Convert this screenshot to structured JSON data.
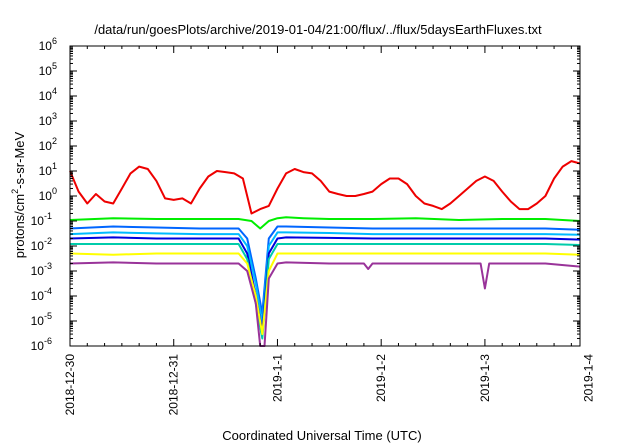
{
  "chart_data": {
    "type": "line",
    "title": "/data/run/goesPlots/archive/2019-01-04/21:00/flux/../flux/5daysEarthFluxes.txt",
    "xlabel": "Coordinated Universal Time (UTC)",
    "ylabel_parts": [
      "protons/cm",
      "2",
      "-s-sr-MeV"
    ],
    "y_scale": "log",
    "ylim": [
      1e-06,
      1000000.0
    ],
    "y_ticks": [
      {
        "mant": "10",
        "exp": "-6"
      },
      {
        "mant": "10",
        "exp": "-5"
      },
      {
        "mant": "10",
        "exp": "-4"
      },
      {
        "mant": "10",
        "exp": "-3"
      },
      {
        "mant": "10",
        "exp": "-2"
      },
      {
        "mant": "10",
        "exp": "-1"
      },
      {
        "mant": "10",
        "exp": "0"
      },
      {
        "mant": "10",
        "exp": "1"
      },
      {
        "mant": "10",
        "exp": "2"
      },
      {
        "mant": "10",
        "exp": "3"
      },
      {
        "mant": "10",
        "exp": "4"
      },
      {
        "mant": "10",
        "exp": "5"
      },
      {
        "mant": "10",
        "exp": "6"
      }
    ],
    "x_ticks": [
      "2018-12-30",
      "2018-12-31",
      "2019-1-1",
      "2019-1-2",
      "2019-1-3",
      "2019-1-4"
    ],
    "xlim_hours": [
      0,
      118
    ],
    "grid": false,
    "legend": "none",
    "series": [
      {
        "color": "#ee0000",
        "x": [
          0,
          2,
          4,
          6,
          8,
          10,
          12,
          14,
          16,
          18,
          20,
          22,
          24,
          26,
          28,
          30,
          32,
          34,
          36,
          38,
          40,
          42,
          44,
          46,
          48,
          50,
          52,
          54,
          56,
          58,
          60,
          62,
          64,
          66,
          68,
          70,
          72,
          74,
          76,
          78,
          80,
          82,
          84,
          86,
          88,
          90,
          92,
          94,
          96,
          98,
          100,
          102,
          104,
          106,
          108,
          110,
          112,
          114,
          116,
          118
        ],
        "y": [
          10,
          1.5,
          0.5,
          1.2,
          0.6,
          0.5,
          2,
          8,
          15,
          12,
          4,
          0.8,
          0.7,
          0.8,
          0.5,
          2,
          6,
          10,
          9,
          8,
          5,
          0.2,
          0.3,
          0.4,
          2,
          8,
          12,
          9,
          8,
          4,
          1.5,
          1.2,
          1,
          1,
          1.2,
          1.5,
          3,
          5,
          5,
          3,
          1,
          0.5,
          0.4,
          0.3,
          0.5,
          1,
          2,
          4,
          6,
          4,
          1.5,
          0.6,
          0.3,
          0.3,
          0.5,
          1,
          5,
          15,
          25,
          20
        ]
      },
      {
        "color": "#00ee00",
        "x": [
          0,
          10,
          20,
          30,
          39,
          42,
          44,
          46,
          48,
          50,
          54,
          60,
          70,
          80,
          90,
          100,
          110,
          118
        ],
        "y": [
          0.11,
          0.13,
          0.12,
          0.12,
          0.12,
          0.1,
          0.05,
          0.1,
          0.13,
          0.14,
          0.13,
          0.12,
          0.12,
          0.13,
          0.11,
          0.12,
          0.12,
          0.1
        ]
      },
      {
        "color": "#0066ff",
        "x": [
          0,
          10,
          20,
          30,
          39,
          41,
          43,
          44.5,
          46,
          48,
          50,
          60,
          70,
          80,
          90,
          100,
          110,
          118
        ],
        "y": [
          0.05,
          0.06,
          0.055,
          0.05,
          0.05,
          0.02,
          0.0005,
          2e-05,
          0.02,
          0.06,
          0.06,
          0.055,
          0.05,
          0.05,
          0.05,
          0.05,
          0.05,
          0.045
        ]
      },
      {
        "color": "#00bbff",
        "x": [
          0,
          10,
          20,
          30,
          39,
          41,
          43,
          44.5,
          46,
          48,
          50,
          60,
          70,
          80,
          90,
          100,
          110,
          118
        ],
        "y": [
          0.03,
          0.035,
          0.032,
          0.03,
          0.03,
          0.01,
          0.0003,
          8e-06,
          0.01,
          0.035,
          0.035,
          0.033,
          0.03,
          0.03,
          0.03,
          0.03,
          0.03,
          0.028
        ]
      },
      {
        "color": "#0000dd",
        "x": [
          0,
          10,
          20,
          30,
          39,
          41,
          43,
          44.5,
          46,
          48,
          50,
          60,
          70,
          80,
          90,
          100,
          110,
          118
        ],
        "y": [
          0.02,
          0.022,
          0.02,
          0.02,
          0.02,
          0.005,
          0.0001,
          4e-06,
          0.005,
          0.02,
          0.022,
          0.021,
          0.02,
          0.02,
          0.02,
          0.02,
          0.02,
          0.018
        ]
      },
      {
        "color": "#00ccaa",
        "x": [
          0,
          10,
          20,
          30,
          39,
          41,
          43,
          44.5,
          46,
          48,
          50,
          60,
          70,
          80,
          90,
          100,
          110,
          118
        ],
        "y": [
          0.012,
          0.012,
          0.012,
          0.012,
          0.012,
          0.003,
          5e-05,
          2e-06,
          0.003,
          0.012,
          0.012,
          0.012,
          0.012,
          0.012,
          0.012,
          0.012,
          0.012,
          0.011
        ]
      },
      {
        "color": "#ffff00",
        "x": [
          0,
          10,
          20,
          30,
          39,
          41,
          43,
          44.5,
          46,
          48,
          50,
          60,
          70,
          80,
          90,
          100,
          110,
          118
        ],
        "y": [
          0.005,
          0.0045,
          0.005,
          0.005,
          0.005,
          0.002,
          0.0001,
          3e-06,
          0.001,
          0.005,
          0.005,
          0.005,
          0.005,
          0.005,
          0.005,
          0.005,
          0.005,
          0.0045
        ]
      },
      {
        "color": "#993399",
        "x": [
          0,
          10,
          20,
          30,
          39,
          41,
          43,
          44,
          45,
          46,
          48,
          50,
          60,
          68,
          69,
          70,
          80,
          90,
          95,
          96,
          97,
          100,
          110,
          118
        ],
        "y": [
          0.002,
          0.0022,
          0.002,
          0.002,
          0.002,
          0.001,
          5e-05,
          1e-06,
          1e-06,
          0.0005,
          0.002,
          0.0022,
          0.002,
          0.002,
          0.0012,
          0.002,
          0.002,
          0.002,
          0.002,
          0.0002,
          0.002,
          0.002,
          0.002,
          0.0015
        ]
      }
    ]
  }
}
